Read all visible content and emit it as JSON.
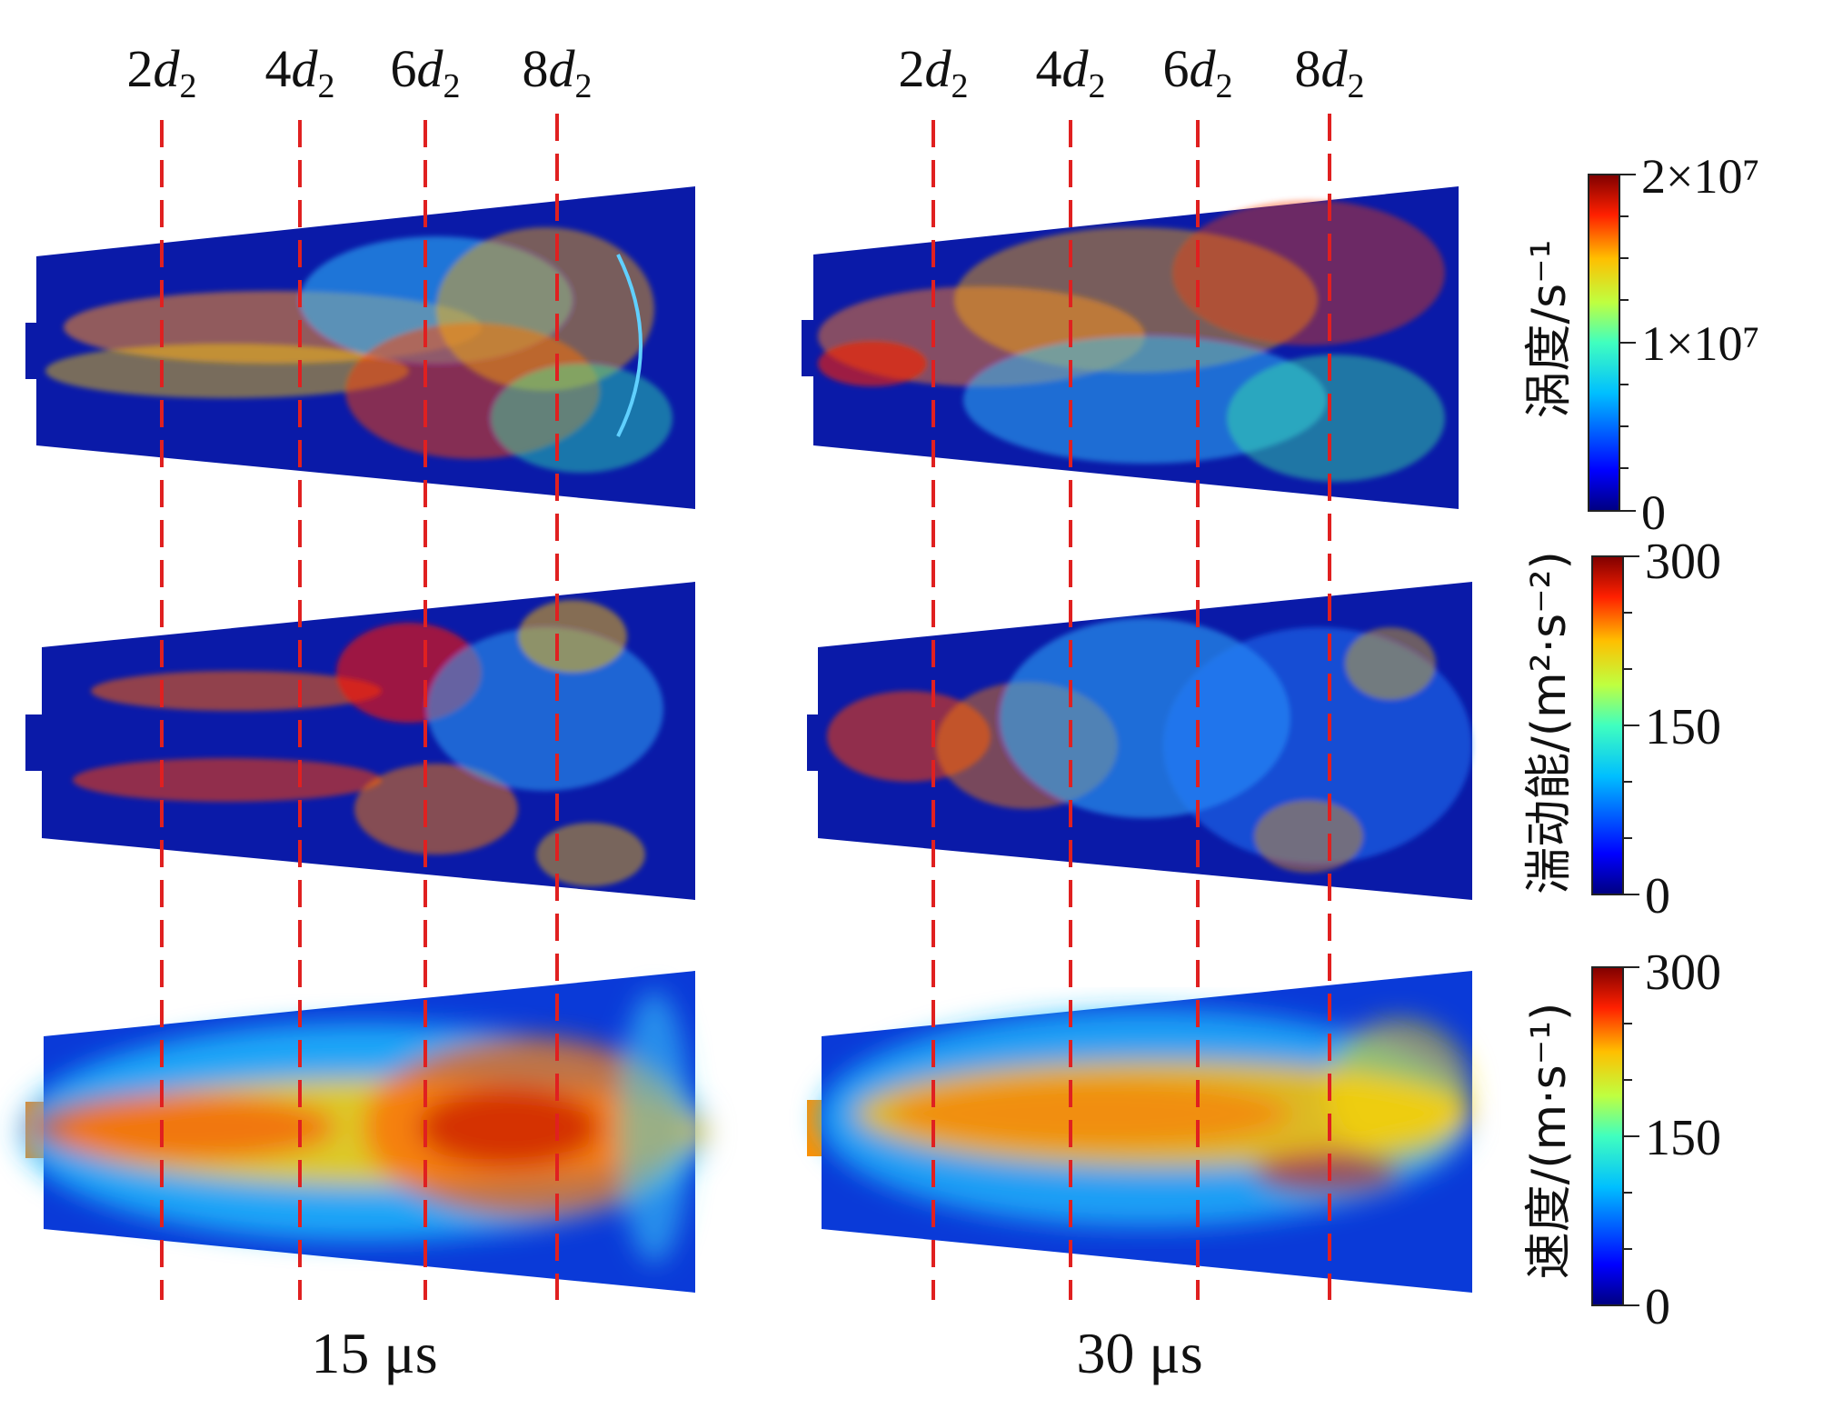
{
  "figure": {
    "position_labels_left": [
      "2d2",
      "4d2",
      "6d2",
      "8d2"
    ],
    "position_labels_right": [
      "2d2",
      "4d2",
      "6d2",
      "8d2"
    ],
    "time_labels": [
      "15 μs",
      "30 μs"
    ],
    "rows": [
      {
        "name": "vorticity",
        "colorbar_label": "涡度/s⁻¹",
        "colorbar_ticks": [
          "2×10⁷",
          "1×10⁷",
          "0"
        ],
        "range": [
          0,
          20000000
        ]
      },
      {
        "name": "turbulent-kinetic-energy",
        "colorbar_label": "湍动能/(m²·s⁻²)",
        "colorbar_ticks": [
          "300",
          "150",
          "0"
        ],
        "range": [
          0,
          300
        ]
      },
      {
        "name": "velocity",
        "colorbar_label": "速度/(m·s⁻¹)",
        "colorbar_ticks": [
          "300",
          "150",
          "0"
        ],
        "range": [
          0,
          300
        ]
      }
    ],
    "colormap": [
      "#00007f",
      "#0000ff",
      "#007fff",
      "#00ffff",
      "#7fff7f",
      "#ffff00",
      "#ff7f00",
      "#ff0000",
      "#7f0000"
    ],
    "marker_line_color": "#e02020",
    "background_field_color": "#0a1aa8"
  }
}
